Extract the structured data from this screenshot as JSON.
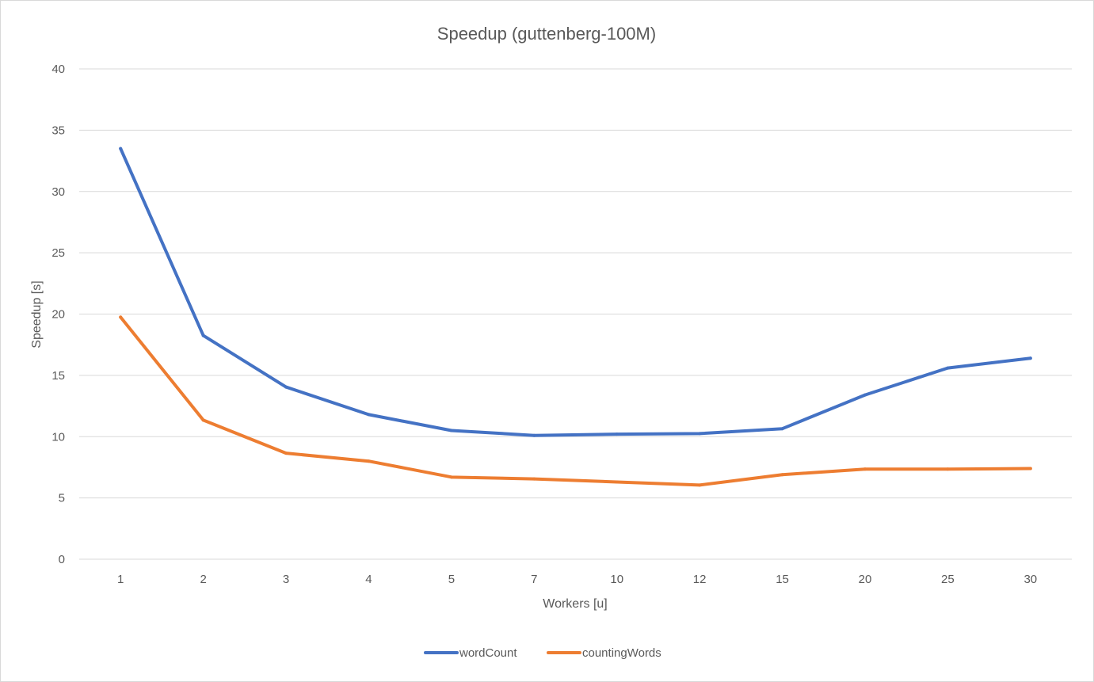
{
  "chart_data": {
    "type": "line",
    "title": "Speedup (guttenberg-100M)",
    "xlabel": "Workers [u]",
    "ylabel": "Speedup [s]",
    "categories": [
      "1",
      "2",
      "3",
      "4",
      "5",
      "7",
      "10",
      "12",
      "15",
      "20",
      "25",
      "30"
    ],
    "ylim": [
      0,
      40
    ],
    "yticks": [
      "0",
      "5",
      "10",
      "15",
      "20",
      "25",
      "30",
      "35",
      "40"
    ],
    "grid": true,
    "legend_position": "bottom",
    "series": [
      {
        "name": "wordCount",
        "color": "#4472c4",
        "values": [
          33.5,
          18.25,
          14.05,
          11.8,
          10.5,
          10.1,
          10.2,
          10.25,
          10.65,
          13.4,
          15.6,
          16.4
        ]
      },
      {
        "name": "countingWords",
        "color": "#ed7d31",
        "values": [
          19.75,
          11.35,
          8.65,
          8.0,
          6.7,
          6.55,
          6.3,
          6.05,
          6.9,
          7.35,
          7.35,
          7.4
        ]
      }
    ]
  }
}
